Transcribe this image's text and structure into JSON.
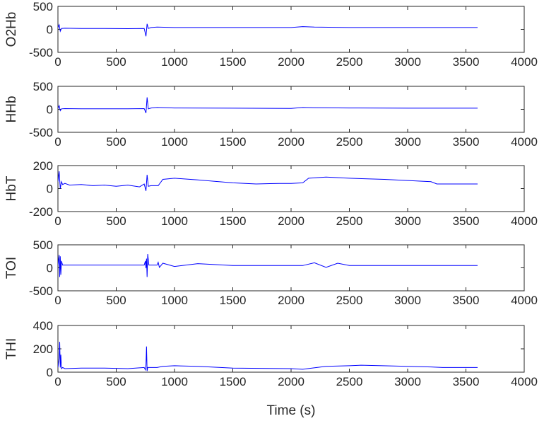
{
  "chart_data": [
    {
      "type": "line",
      "ylabel": "O2Hb",
      "xlabel": "",
      "xlim": [
        0,
        4000
      ],
      "ylim": [
        -500,
        500
      ],
      "xticks": [
        0,
        500,
        1000,
        1500,
        2000,
        2500,
        3000,
        3500,
        4000
      ],
      "yticks": [
        500,
        0,
        -500
      ],
      "series": [
        {
          "color": "#0000ff",
          "x": [
            0,
            10,
            20,
            30,
            60,
            200,
            400,
            600,
            740,
            755,
            765,
            775,
            800,
            850,
            1000,
            1500,
            2000,
            2100,
            2200,
            2500,
            3000,
            3600
          ],
          "y": [
            40,
            100,
            -40,
            20,
            25,
            20,
            20,
            15,
            20,
            -150,
            120,
            20,
            40,
            50,
            40,
            40,
            40,
            60,
            50,
            40,
            40,
            40
          ]
        }
      ]
    },
    {
      "type": "line",
      "ylabel": "HHb",
      "xlabel": "",
      "xlim": [
        0,
        4000
      ],
      "ylim": [
        -500,
        500
      ],
      "xticks": [
        0,
        500,
        1000,
        1500,
        2000,
        2500,
        3000,
        3500,
        4000
      ],
      "yticks": [
        500,
        0,
        -500
      ],
      "series": [
        {
          "color": "#0000ff",
          "x": [
            0,
            10,
            20,
            30,
            60,
            200,
            400,
            600,
            740,
            755,
            765,
            775,
            800,
            850,
            1000,
            1500,
            2000,
            2100,
            2200,
            2500,
            3000,
            3600
          ],
          "y": [
            20,
            80,
            -30,
            10,
            15,
            10,
            10,
            10,
            15,
            -80,
            260,
            10,
            30,
            40,
            30,
            25,
            20,
            40,
            35,
            30,
            25,
            25
          ]
        }
      ]
    },
    {
      "type": "line",
      "ylabel": "HbT",
      "xlabel": "",
      "xlim": [
        0,
        4000
      ],
      "ylim": [
        -200,
        200
      ],
      "xticks": [
        0,
        500,
        1000,
        1500,
        2000,
        2500,
        3000,
        3500,
        4000
      ],
      "yticks": [
        200,
        0,
        -200
      ],
      "series": [
        {
          "color": "#0000ff",
          "x": [
            0,
            10,
            20,
            30,
            40,
            60,
            100,
            200,
            300,
            400,
            500,
            600,
            700,
            740,
            755,
            765,
            775,
            800,
            860,
            900,
            1000,
            1200,
            1500,
            1700,
            1900,
            2000,
            2100,
            2150,
            2300,
            2500,
            2800,
            3000,
            3200,
            3250,
            3400,
            3600
          ],
          "y": [
            60,
            150,
            0,
            60,
            35,
            45,
            30,
            35,
            25,
            30,
            20,
            30,
            15,
            40,
            -20,
            120,
            20,
            25,
            25,
            80,
            90,
            75,
            50,
            40,
            45,
            45,
            50,
            90,
            100,
            90,
            80,
            70,
            60,
            40,
            40,
            40
          ]
        }
      ]
    },
    {
      "type": "line",
      "ylabel": "TOI",
      "xlabel": "",
      "xlim": [
        0,
        4000
      ],
      "ylim": [
        -500,
        500
      ],
      "xticks": [
        0,
        500,
        1000,
        1500,
        2000,
        2500,
        3000,
        3500,
        4000
      ],
      "yticks": [
        500,
        0,
        -500
      ],
      "series": [
        {
          "color": "#0000ff",
          "x": [
            0,
            10,
            15,
            20,
            25,
            30,
            40,
            60,
            200,
            400,
            600,
            740,
            750,
            755,
            760,
            765,
            770,
            780,
            850,
            860,
            870,
            900,
            1000,
            1200,
            1500,
            2000,
            2100,
            2200,
            2300,
            2400,
            2500,
            3000,
            3600
          ],
          "y": [
            60,
            280,
            -200,
            250,
            -150,
            150,
            60,
            60,
            60,
            60,
            60,
            60,
            150,
            -10,
            200,
            -200,
            300,
            60,
            60,
            120,
            10,
            100,
            30,
            90,
            50,
            50,
            50,
            110,
            10,
            100,
            50,
            50,
            50
          ]
        }
      ]
    },
    {
      "type": "line",
      "ylabel": "THI",
      "xlabel": "Time (s)",
      "xlim": [
        0,
        4000
      ],
      "ylim": [
        0,
        400
      ],
      "xticks": [
        0,
        500,
        1000,
        1500,
        2000,
        2500,
        3000,
        3500,
        4000
      ],
      "yticks": [
        400,
        200,
        0
      ],
      "series": [
        {
          "color": "#0000ff",
          "x": [
            0,
            10,
            15,
            20,
            25,
            30,
            40,
            60,
            200,
            400,
            600,
            740,
            750,
            755,
            760,
            765,
            770,
            780,
            850,
            900,
            1000,
            1200,
            1500,
            2000,
            2100,
            2300,
            2500,
            2600,
            3000,
            3200,
            3300,
            3600
          ],
          "y": [
            40,
            120,
            260,
            40,
            150,
            30,
            40,
            30,
            35,
            35,
            30,
            40,
            20,
            60,
            220,
            10,
            40,
            40,
            40,
            50,
            55,
            50,
            35,
            30,
            25,
            50,
            55,
            60,
            50,
            45,
            40,
            40
          ]
        }
      ]
    }
  ]
}
